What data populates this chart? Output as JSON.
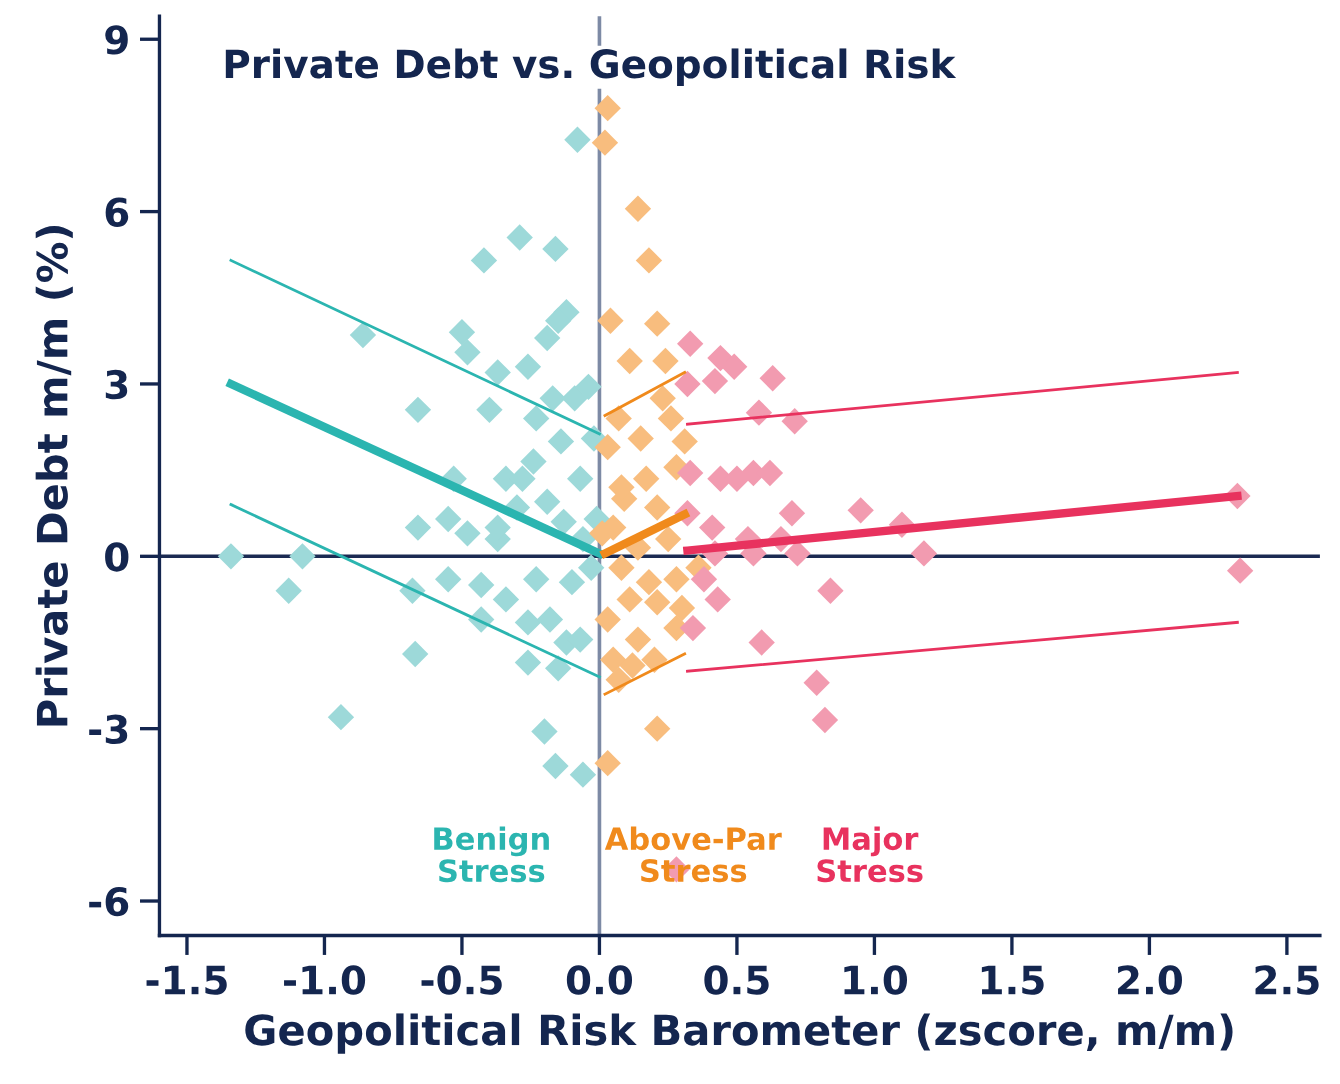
{
  "chart_data": {
    "type": "scatter",
    "title": "Private Debt vs. Geopolitical Risk",
    "xlabel": "Geopolitical Risk Barometer (zscore, m/m)",
    "ylabel": "Private Debt m/m (%)",
    "xlim": [
      -1.6,
      2.62
    ],
    "ylim": [
      -6.6,
      9.4
    ],
    "xticks": [
      {
        "value": -1.5,
        "label": "-1.5"
      },
      {
        "value": -1,
        "label": "-1.0"
      },
      {
        "value": -0.5,
        "label": "-0.5"
      },
      {
        "value": 0,
        "label": "0.0"
      },
      {
        "value": 0.5,
        "label": "0.5"
      },
      {
        "value": 1,
        "label": "1.0"
      },
      {
        "value": 1.5,
        "label": "1.5"
      },
      {
        "value": 2,
        "label": "2.0"
      },
      {
        "value": 2.5,
        "label": "2.5"
      }
    ],
    "yticks": [
      -6,
      -3,
      0,
      3,
      6,
      9
    ],
    "grid": false,
    "legend": false,
    "marker": "diamond",
    "ref_lines": [
      {
        "axis": "x",
        "value": 0,
        "color": "#7d8aa5"
      },
      {
        "axis": "y",
        "value": 0,
        "color": "#1b2a52"
      }
    ],
    "annotations": [
      "Benign\nStress",
      "Above-Par\nStress",
      "Major\nStress"
    ],
    "series": [
      {
        "color": "#9dd9d9",
        "x": [
          -1.34,
          -1.13,
          -1.08,
          -0.94,
          -0.86,
          -0.66,
          -0.67,
          -0.68,
          -0.66,
          -0.42,
          -0.29,
          -0.08,
          -0.16,
          -0.5,
          -0.48,
          -0.37,
          -0.12,
          -0.15,
          -0.19,
          -0.26,
          -0.4,
          -0.53,
          -0.55,
          -0.48,
          -0.55,
          -0.43,
          -0.37,
          -0.3,
          -0.34,
          -0.24,
          -0.23,
          -0.17,
          -0.09,
          -0.04,
          -0.14,
          -0.07,
          -0.02,
          -0.28,
          -0.19,
          -0.13,
          -0.06,
          -0.03,
          -0.1,
          -0.23,
          -0.34,
          -0.26,
          -0.18,
          -0.12,
          -0.07,
          -0.43,
          -0.26,
          -0.15,
          -0.2,
          -0.16,
          -0.06,
          -0.37,
          -0.01
        ],
        "values": [
          0,
          -0.6,
          0,
          -2.8,
          3.85,
          2.55,
          -1.7,
          -0.6,
          0.5,
          5.15,
          5.55,
          7.25,
          5.35,
          3.9,
          3.55,
          3.2,
          4.25,
          4.1,
          3.8,
          3.3,
          2.55,
          1.35,
          0.65,
          0.4,
          -0.4,
          -0.5,
          0.3,
          0.85,
          1.35,
          1.65,
          2.4,
          2.75,
          2.75,
          2.95,
          2.0,
          1.35,
          2.05,
          1.35,
          0.95,
          0.6,
          0.3,
          -0.2,
          -0.45,
          -0.4,
          -0.75,
          -1.15,
          -1.1,
          -1.5,
          -1.45,
          -1.1,
          -1.85,
          -1.95,
          -3.05,
          -3.65,
          -3.8,
          0.5,
          0.65
        ]
      },
      {
        "color": "#f8bd7e",
        "x": [
          0.03,
          0.02,
          0.14,
          0.18,
          0.04,
          0.21,
          0.11,
          0.24,
          0.07,
          0.23,
          0.26,
          0.15,
          0.31,
          0.03,
          0.17,
          0.28,
          0.09,
          0.21,
          0.05,
          0.14,
          0.25,
          0.08,
          0.18,
          0.28,
          0.36,
          0.11,
          0.21,
          0.3,
          0.03,
          0.14,
          0.28,
          0.05,
          0.12,
          0.2,
          0.07,
          0.21,
          0.03,
          0.01,
          0.08
        ],
        "values": [
          7.8,
          7.2,
          6.05,
          5.15,
          4.1,
          4.05,
          3.4,
          3.4,
          2.4,
          2.75,
          2.4,
          2.05,
          2.0,
          1.9,
          1.35,
          1.55,
          1.0,
          0.85,
          0.5,
          0.15,
          0.3,
          -0.2,
          -0.45,
          -0.4,
          -0.2,
          -0.75,
          -0.8,
          -0.9,
          -1.1,
          -1.45,
          -1.25,
          -1.8,
          -1.9,
          -1.8,
          -2.15,
          -3.0,
          -3.6,
          0.4,
          1.2
        ]
      },
      {
        "color": "#f29bb0",
        "x": [
          0.33,
          0.44,
          0.49,
          0.63,
          0.32,
          0.42,
          0.58,
          0.71,
          0.33,
          0.44,
          0.5,
          0.56,
          0.62,
          0.32,
          0.41,
          0.54,
          0.66,
          0.7,
          0.42,
          0.56,
          0.72,
          0.38,
          0.43,
          0.34,
          0.59,
          0.79,
          0.82,
          0.95,
          1.1,
          1.18,
          0.84,
          0.28,
          2.32,
          2.33
        ],
        "values": [
          3.7,
          3.45,
          3.3,
          3.1,
          3.0,
          3.05,
          2.5,
          2.35,
          1.45,
          1.35,
          1.35,
          1.45,
          1.45,
          0.75,
          0.5,
          0.3,
          0.3,
          0.75,
          0.05,
          0.05,
          0.05,
          -0.4,
          -0.75,
          -1.25,
          -1.5,
          -2.2,
          -2.85,
          0.8,
          0.55,
          0.05,
          -0.6,
          -5.45,
          1.05,
          -0.25
        ]
      },
      {
        "type": "line",
        "marker": "none",
        "color": "#2bb5b0",
        "x": [
          -1.34,
          0
        ],
        "values": [
          3.0,
          0.05
        ]
      },
      {
        "type": "line",
        "marker": "none",
        "color": "#2bb5b0",
        "x": [
          -1.34,
          0
        ],
        "values": [
          5.15,
          2.13
        ]
      },
      {
        "type": "line",
        "marker": "none",
        "color": "#2bb5b0",
        "x": [
          -1.34,
          0
        ],
        "values": [
          0.9,
          -2.1
        ]
      },
      {
        "type": "line",
        "marker": "none",
        "color": "#f08a1c",
        "x": [
          0.02,
          0.31
        ],
        "values": [
          0.05,
          0.73
        ]
      },
      {
        "type": "line",
        "marker": "none",
        "color": "#f08a1c",
        "x": [
          0.02,
          0.31
        ],
        "values": [
          2.45,
          3.2
        ]
      },
      {
        "type": "line",
        "marker": "none",
        "color": "#f08a1c",
        "x": [
          0.02,
          0.31
        ],
        "values": [
          -2.4,
          -1.7
        ]
      },
      {
        "type": "line",
        "marker": "none",
        "color": "#e8325e",
        "x": [
          0.32,
          2.32
        ],
        "values": [
          0.1,
          1.05
        ]
      },
      {
        "type": "line",
        "marker": "none",
        "color": "#e8325e",
        "x": [
          0.32,
          2.32
        ],
        "values": [
          2.3,
          3.2
        ]
      },
      {
        "type": "line",
        "marker": "none",
        "color": "#e8325e",
        "x": [
          0.32,
          2.32
        ],
        "values": [
          -2.0,
          -1.15
        ]
      }
    ]
  }
}
